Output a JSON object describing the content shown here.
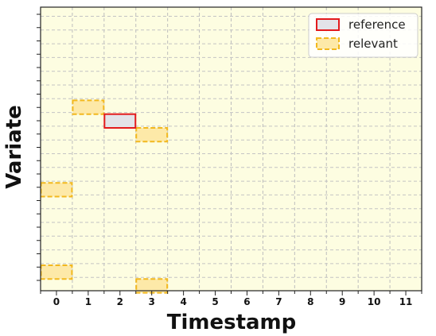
{
  "chart_data": {
    "type": "heatmap",
    "xlabel": "Timestamp",
    "ylabel": "Variate",
    "x_ticks": [
      0,
      1,
      2,
      3,
      4,
      5,
      6,
      7,
      8,
      9,
      10,
      11
    ],
    "num_variates": 20,
    "grid": true,
    "legend_position": "top-right",
    "background_color": "#fdfde1",
    "series": [
      {
        "name": "reference",
        "style": "solid",
        "edge_color": "#e31a1c",
        "fill_color": "#e3e3e8",
        "cells": [
          {
            "timestamp": 2,
            "variate": 11
          }
        ]
      },
      {
        "name": "relevant",
        "style": "dashed",
        "edge_color": "#f2b81e",
        "fill_color": "#fde9a8",
        "cells": [
          {
            "timestamp": 1,
            "variate": 12
          },
          {
            "timestamp": 3,
            "variate": 10
          },
          {
            "timestamp": 0,
            "variate": 6
          },
          {
            "timestamp": 0,
            "variate": 0
          },
          {
            "timestamp": 3,
            "variate": -1
          }
        ]
      }
    ]
  }
}
